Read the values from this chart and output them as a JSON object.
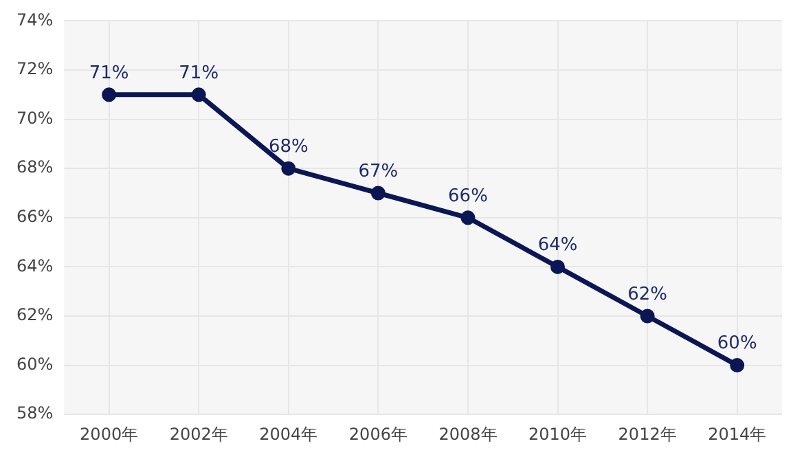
{
  "chart_data": {
    "type": "line",
    "categories": [
      "2000年",
      "2002年",
      "2004年",
      "2006年",
      "2008年",
      "2010年",
      "2012年",
      "2014年"
    ],
    "series": [
      {
        "color": "#0b1654",
        "values": [
          71,
          71,
          68,
          67,
          66,
          64,
          62,
          60
        ],
        "value_labels": [
          "71%",
          "71%",
          "68%",
          "67%",
          "66%",
          "64%",
          "62%",
          "60%"
        ]
      }
    ],
    "ylim": [
      58,
      74
    ],
    "yticks": [
      {
        "value": 58,
        "label": "58%"
      },
      {
        "value": 60,
        "label": "60%"
      },
      {
        "value": 62,
        "label": "62%"
      },
      {
        "value": 64,
        "label": "64%"
      },
      {
        "value": 66,
        "label": "66%"
      },
      {
        "value": 68,
        "label": "68%"
      },
      {
        "value": 70,
        "label": "70%"
      },
      {
        "value": 72,
        "label": "72%"
      },
      {
        "value": 74,
        "label": "74%"
      }
    ],
    "grid": true,
    "legend": false,
    "marker": "circle",
    "line_style": "solid"
  }
}
